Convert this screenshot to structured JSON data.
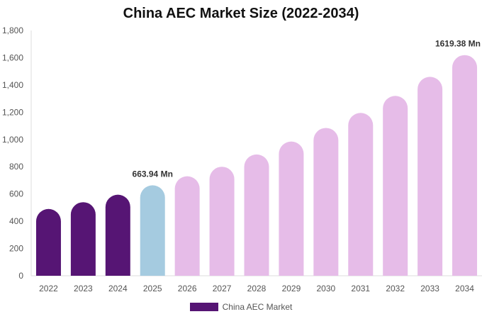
{
  "chart_data": {
    "type": "bar",
    "title": "China AEC Market Size (2022-2034)",
    "xlabel": "",
    "ylabel": "",
    "categories": [
      "2022",
      "2023",
      "2024",
      "2025",
      "2026",
      "2027",
      "2028",
      "2029",
      "2030",
      "2031",
      "2032",
      "2033",
      "2034"
    ],
    "series": [
      {
        "name": "China AEC Market",
        "values": [
          490,
          540,
          595,
          663.94,
          730,
          800,
          890,
          985,
          1085,
          1195,
          1320,
          1460,
          1619.38
        ]
      }
    ],
    "ylim": [
      0,
      1800
    ],
    "yticks": [
      "0",
      "200",
      "400",
      "600",
      "800",
      "1,000",
      "1,200",
      "1,400",
      "1,600",
      "1,800"
    ],
    "ytick_values": [
      0,
      200,
      400,
      600,
      800,
      1000,
      1200,
      1400,
      1600,
      1800
    ],
    "data_labels": [
      {
        "index": 3,
        "text": "663.94 Mn"
      },
      {
        "index": 12,
        "text": "1619.38 Mn"
      }
    ],
    "bar_colors": [
      "#561574",
      "#561574",
      "#561574",
      "#a5cbe0",
      "#e6bce8",
      "#e6bce8",
      "#e6bce8",
      "#e6bce8",
      "#e6bce8",
      "#e6bce8",
      "#e6bce8",
      "#e6bce8",
      "#e6bce8"
    ],
    "legend": {
      "label": "China AEC Market",
      "color": "#561574",
      "position": "bottom-center"
    },
    "grid": false
  }
}
